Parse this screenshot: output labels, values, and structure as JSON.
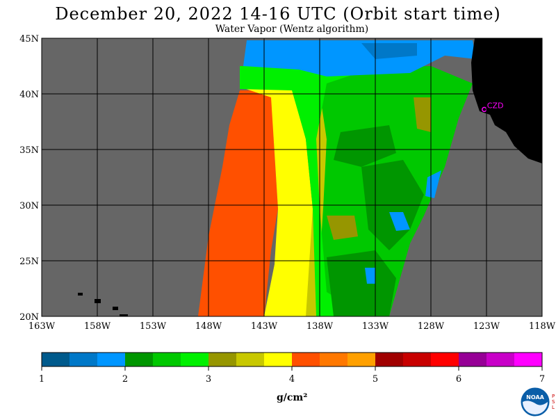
{
  "title": "December 20, 2022  14-16 UTC  (Orbit start time)",
  "subtitle": "Water Vapor (Wentz algorithm)",
  "map": {
    "lat_labels": [
      "45N",
      "40N",
      "35N",
      "30N",
      "25N",
      "20N"
    ],
    "lat_values": [
      45,
      40,
      35,
      30,
      25,
      20
    ],
    "lon_labels": [
      "163W",
      "158W",
      "153W",
      "148W",
      "143W",
      "138W",
      "133W",
      "128W",
      "123W",
      "118W"
    ],
    "lon_values": [
      -163,
      -158,
      -153,
      -148,
      -143,
      -138,
      -133,
      -128,
      -123,
      -118
    ],
    "station_label": "CZD",
    "station_lat": 38.6,
    "station_lon": -123.2,
    "no_data_color": "#666666",
    "land_color": "#000000",
    "station_color": "#ff00ff"
  },
  "colorbar": {
    "tick_labels": [
      "1",
      "2",
      "3",
      "4",
      "5",
      "6",
      "7"
    ],
    "unit_label": "g/cm²",
    "colors": [
      "#005a8c",
      "#0078c8",
      "#0096ff",
      "#009600",
      "#00c800",
      "#00f000",
      "#969600",
      "#c8c800",
      "#ffff00",
      "#ff5000",
      "#ff7800",
      "#ffa000",
      "#a00000",
      "#c80000",
      "#ff0000",
      "#960096",
      "#c800c8",
      "#ff00ff"
    ]
  },
  "logo": {
    "text": "NOAA",
    "side_text": "PSL"
  }
}
